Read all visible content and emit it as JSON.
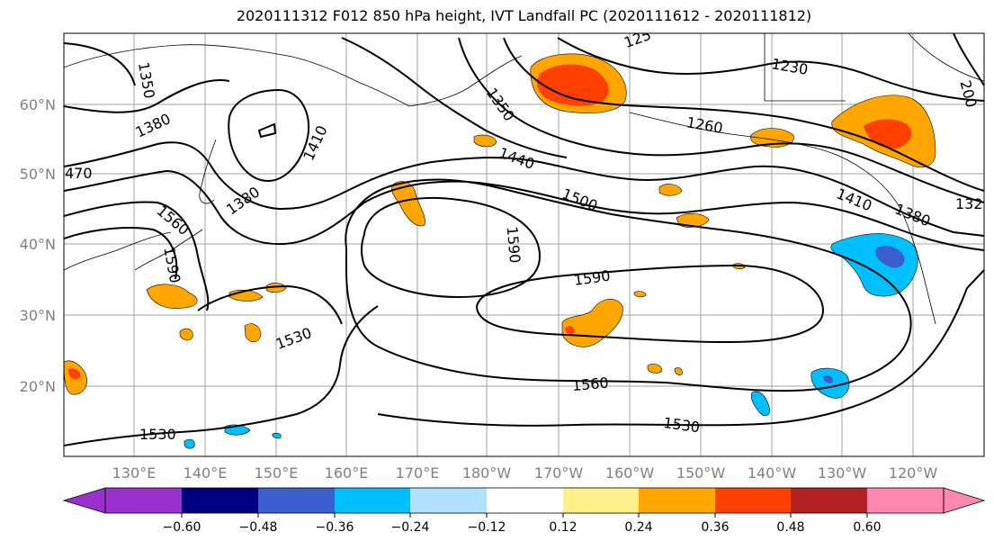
{
  "title": "2020111312 F012 850 hPa height, IVT Landfall PC (2020111612 - 2020111812)",
  "lon_labels": [
    "130°E",
    "140°E",
    "150°E",
    "160°E",
    "170°E",
    "180°W",
    "170°W",
    "160°W",
    "150°W",
    "140°W",
    "130°W",
    "120°W"
  ],
  "lat_labels": [
    "60°N",
    "50°N",
    "40°N",
    "30°N",
    "20°N"
  ],
  "colorbar": {
    "colors": [
      "#9932cc",
      "#000080",
      "#3a5fcd",
      "#00bfff",
      "#b0e2ff",
      "#ffffff",
      "#fff08a",
      "#ffa500",
      "#ff4000",
      "#b22222",
      "#ff88b0"
    ],
    "tick_labels": [
      "−0.60",
      "−0.48",
      "−0.36",
      "−0.24",
      "−0.12",
      "0.12",
      "0.24",
      "0.36",
      "0.48",
      "0.60"
    ]
  },
  "contour_labels": [
    "1350",
    "1380",
    "1410",
    "470",
    "1380",
    "1560",
    "1590",
    "1530",
    "1350",
    "1440",
    "1500",
    "1590",
    "1590",
    "1560",
    "1530",
    "1530",
    "1260",
    "1230",
    "1410",
    "1380",
    "132",
    "200",
    "125"
  ]
}
